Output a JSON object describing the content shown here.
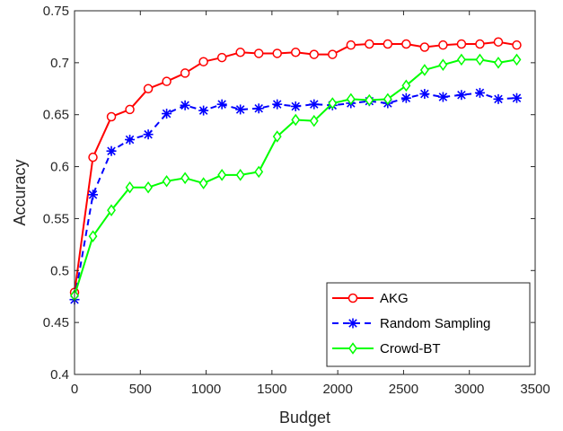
{
  "chart_data": {
    "type": "line",
    "xlabel": "Budget",
    "ylabel": "Accuracy",
    "xlim": [
      0,
      3500
    ],
    "ylim": [
      0.4,
      0.75
    ],
    "xticks": [
      0,
      500,
      1000,
      1500,
      2000,
      2500,
      3000,
      3500
    ],
    "yticks": [
      0.4,
      0.45,
      0.5,
      0.55,
      0.6,
      0.65,
      0.7,
      0.75
    ],
    "xtick_labels": [
      "0",
      "500",
      "1000",
      "1500",
      "2000",
      "2500",
      "3000",
      "3500"
    ],
    "ytick_labels": [
      "0.4",
      "0.45",
      "0.5",
      "0.55",
      "0.6",
      "0.65",
      "0.7",
      "0.75"
    ],
    "grid": false,
    "legend_position": "bottom-right",
    "series": [
      {
        "name": "AKG",
        "color": "#ff0000",
        "line_style": "solid",
        "marker": "circle",
        "x": [
          0,
          140,
          280,
          420,
          560,
          700,
          840,
          980,
          1120,
          1260,
          1400,
          1540,
          1680,
          1820,
          1960,
          2100,
          2240,
          2380,
          2520,
          2660,
          2800,
          2940,
          3080,
          3220,
          3360
        ],
        "y": [
          0.479,
          0.609,
          0.648,
          0.655,
          0.675,
          0.682,
          0.69,
          0.701,
          0.705,
          0.71,
          0.709,
          0.709,
          0.71,
          0.708,
          0.708,
          0.717,
          0.718,
          0.718,
          0.718,
          0.715,
          0.717,
          0.718,
          0.718,
          0.72,
          0.717
        ]
      },
      {
        "name": "Random Sampling",
        "color": "#0000ff",
        "line_style": "dashed",
        "marker": "asterisk",
        "x": [
          0,
          140,
          280,
          420,
          560,
          700,
          840,
          980,
          1120,
          1260,
          1400,
          1540,
          1680,
          1820,
          1960,
          2100,
          2240,
          2380,
          2520,
          2660,
          2800,
          2940,
          3080,
          3220,
          3360
        ],
        "y": [
          0.472,
          0.573,
          0.615,
          0.626,
          0.631,
          0.651,
          0.659,
          0.654,
          0.66,
          0.655,
          0.656,
          0.66,
          0.658,
          0.66,
          0.659,
          0.661,
          0.663,
          0.661,
          0.666,
          0.67,
          0.667,
          0.669,
          0.671,
          0.665,
          0.666
        ]
      },
      {
        "name": "Crowd-BT",
        "color": "#00ff00",
        "line_style": "solid",
        "marker": "diamond",
        "x": [
          0,
          140,
          280,
          420,
          560,
          700,
          840,
          980,
          1120,
          1260,
          1400,
          1540,
          1680,
          1820,
          1960,
          2100,
          2240,
          2380,
          2520,
          2660,
          2800,
          2940,
          3080,
          3220,
          3360
        ],
        "y": [
          0.476,
          0.533,
          0.558,
          0.58,
          0.58,
          0.586,
          0.589,
          0.584,
          0.592,
          0.592,
          0.595,
          0.629,
          0.645,
          0.644,
          0.661,
          0.665,
          0.664,
          0.665,
          0.678,
          0.693,
          0.698,
          0.703,
          0.703,
          0.7,
          0.703
        ]
      }
    ]
  }
}
